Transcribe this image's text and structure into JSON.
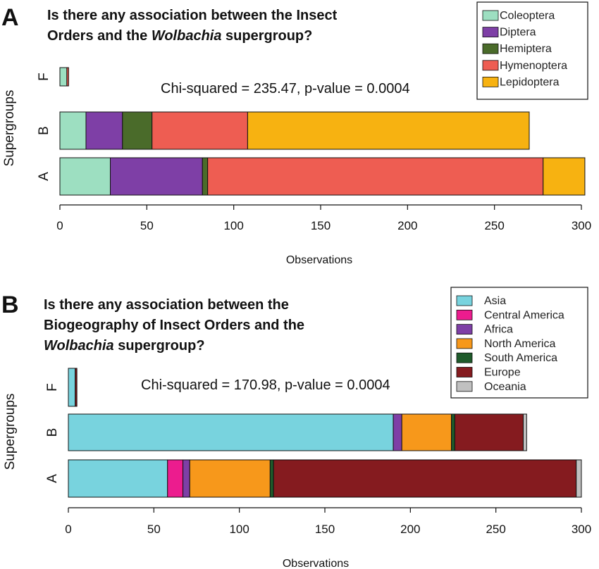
{
  "chart_data": [
    {
      "type": "bar",
      "orientation": "horizontal",
      "stacked": true,
      "panel": "A",
      "title_parts": [
        {
          "text": "Is there any association between the Insect",
          "italic": false
        },
        {
          "text": "Orders and the ",
          "italic": false
        },
        {
          "text": "Wolbachia",
          "italic": true
        },
        {
          "text": " supergroup?",
          "italic": false
        }
      ],
      "annotation": "Chi-squared = 235.47, p-value = 0.0004",
      "xlabel": "Observations",
      "ylabel": "Supergroups",
      "xlim": [
        0,
        300
      ],
      "xticks": [
        0,
        50,
        100,
        150,
        200,
        250,
        300
      ],
      "categories": [
        "F",
        "B",
        "A"
      ],
      "legend_position": "top-right",
      "series": [
        {
          "name": "Coleoptera",
          "color": "#9ddfc1",
          "values": [
            4,
            15,
            29
          ]
        },
        {
          "name": "Diptera",
          "color": "#7e3fa6",
          "values": [
            0,
            21,
            53
          ]
        },
        {
          "name": "Hemiptera",
          "color": "#4a6b2a",
          "values": [
            0,
            17,
            3
          ]
        },
        {
          "name": "Hymenoptera",
          "color": "#ee5d52",
          "values": [
            1,
            55,
            193
          ]
        },
        {
          "name": "Lepidoptera",
          "color": "#f7b211",
          "values": [
            0,
            162,
            24
          ]
        }
      ]
    },
    {
      "type": "bar",
      "orientation": "horizontal",
      "stacked": true,
      "panel": "B",
      "title_parts": [
        {
          "text": "Is there any association between the",
          "italic": false
        },
        {
          "text": "Biogeography of Insect Orders and the",
          "italic": false
        },
        {
          "text": "Wolbachia",
          "italic": true
        },
        {
          "text": " supergroup?",
          "italic": false
        }
      ],
      "annotation": "Chi-squared = 170.98, p-value = 0.0004",
      "xlabel": "Observations",
      "ylabel": "Supergroups",
      "xlim": [
        0,
        300
      ],
      "xticks": [
        0,
        50,
        100,
        150,
        200,
        250,
        300
      ],
      "categories": [
        "F",
        "B",
        "A"
      ],
      "legend_position": "top-right",
      "series": [
        {
          "name": "Asia",
          "color": "#78d3de",
          "values": [
            4,
            190,
            58
          ]
        },
        {
          "name": "Central America",
          "color": "#ec1c8e",
          "values": [
            0,
            0,
            9
          ]
        },
        {
          "name": "Africa",
          "color": "#7e3fa6",
          "values": [
            0,
            5,
            4
          ]
        },
        {
          "name": "North America",
          "color": "#f7981b",
          "values": [
            0,
            29,
            47
          ]
        },
        {
          "name": "South America",
          "color": "#1e5a2a",
          "values": [
            0,
            2,
            2
          ]
        },
        {
          "name": "Europe",
          "color": "#851b1f",
          "values": [
            1,
            40,
            177
          ]
        },
        {
          "name": "Oceania",
          "color": "#c0c0c0",
          "values": [
            0,
            2,
            3
          ]
        }
      ]
    }
  ]
}
